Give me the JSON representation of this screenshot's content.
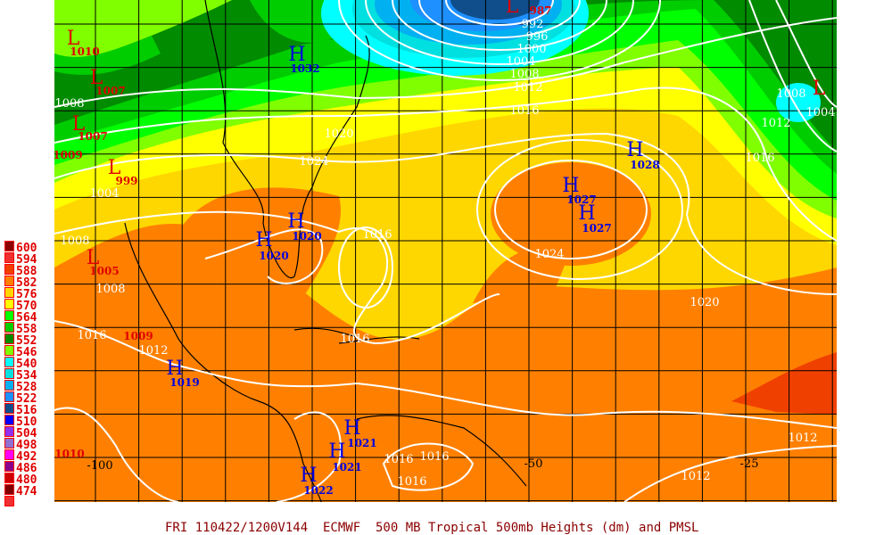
{
  "title": "FRI 110422/1200V144  ECMWF  500 MB Tropical 500mb Heights (dm) and PMSL",
  "legend": {
    "levels": [
      "600",
      "594",
      "588",
      "582",
      "576",
      "570",
      "564",
      "558",
      "552",
      "546",
      "540",
      "534",
      "528",
      "522",
      "516",
      "510",
      "504",
      "498",
      "492",
      "486",
      "480",
      "474"
    ],
    "colors": [
      "#8b0000",
      "#f03030",
      "#f04000",
      "#ff8000",
      "#ffd700",
      "#ffff00",
      "#00ff00",
      "#00cd00",
      "#008b00",
      "#80ff00",
      "#00ffff",
      "#00e0e0",
      "#00b0f0",
      "#1e90ff",
      "#104e8b",
      "#0000ff",
      "#9030f0",
      "#9070d0",
      "#ff00ff",
      "#8b008b",
      "#cd0000",
      "#800000",
      "#f03030"
    ]
  },
  "longitude_labels": [
    "-100",
    "-50",
    "-25"
  ],
  "pressure_centers": [
    {
      "type": "L",
      "value": "1010"
    },
    {
      "type": "L",
      "value": "1007"
    },
    {
      "type": "L",
      "value": "1007"
    },
    {
      "type": "L",
      "value": "999"
    },
    {
      "type": "L",
      "value": "1005"
    },
    {
      "type": "L",
      "value": "987"
    },
    {
      "type": "L",
      "value": ""
    },
    {
      "type": "H",
      "value": "1032"
    },
    {
      "type": "H",
      "value": "1020"
    },
    {
      "type": "H",
      "value": "1020"
    },
    {
      "type": "H",
      "value": "1027"
    },
    {
      "type": "H",
      "value": "1027"
    },
    {
      "type": "H",
      "value": "1028"
    },
    {
      "type": "H",
      "value": "1019"
    },
    {
      "type": "H",
      "value": "1021"
    },
    {
      "type": "H",
      "value": "1021"
    },
    {
      "type": "H",
      "value": "1022"
    }
  ],
  "extra_low_values": [
    "1009",
    "1009",
    "1010"
  ],
  "isobar_labels": [
    "992",
    "996",
    "1000",
    "1004",
    "1008",
    "1012",
    "1016",
    "1020",
    "1024",
    "1016",
    "1024",
    "1020",
    "1016",
    "1012",
    "1008",
    "1004",
    "1012",
    "1012",
    "1016",
    "1016",
    "1016",
    "1016",
    "1008",
    "1004",
    "1008",
    "1008",
    "1012",
    "1016"
  ]
}
